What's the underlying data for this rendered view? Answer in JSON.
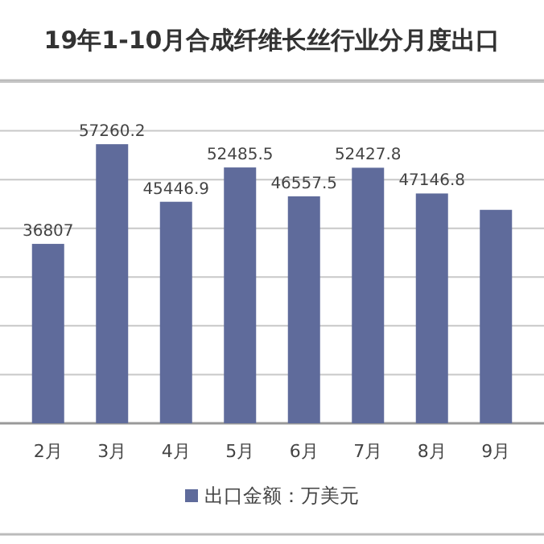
{
  "chart_data": {
    "type": "bar",
    "title": "19年1-10月合成纤维长丝行业分月度出口",
    "categories": [
      "2月",
      "3月",
      "4月",
      "5月",
      "6月",
      "7月",
      "8月",
      "9月"
    ],
    "series": [
      {
        "name": "出口金额：万美元",
        "color": "#5f6b9b",
        "values": [
          36807,
          57260.2,
          45446.9,
          52485.5,
          46557.5,
          52427.8,
          47146.8,
          43790
        ],
        "value_labels": [
          "36807",
          "57260.2",
          "45446.9",
          "52485.5",
          "46557.5",
          "52427.8",
          "47146.8",
          null
        ]
      }
    ],
    "ylim": [
      0,
      70000
    ],
    "yticks": [
      {
        "value": 0,
        "label": null
      },
      {
        "value": 10000,
        "label": null
      },
      {
        "value": 20000,
        "label": null
      },
      {
        "value": 30000,
        "label": null
      },
      {
        "value": 40000,
        "label": null
      },
      {
        "value": 50000,
        "label": null
      },
      {
        "value": 60000,
        "label": null
      },
      {
        "value": 70000,
        "label": null
      }
    ],
    "grid": "y",
    "legend": "bottom"
  }
}
